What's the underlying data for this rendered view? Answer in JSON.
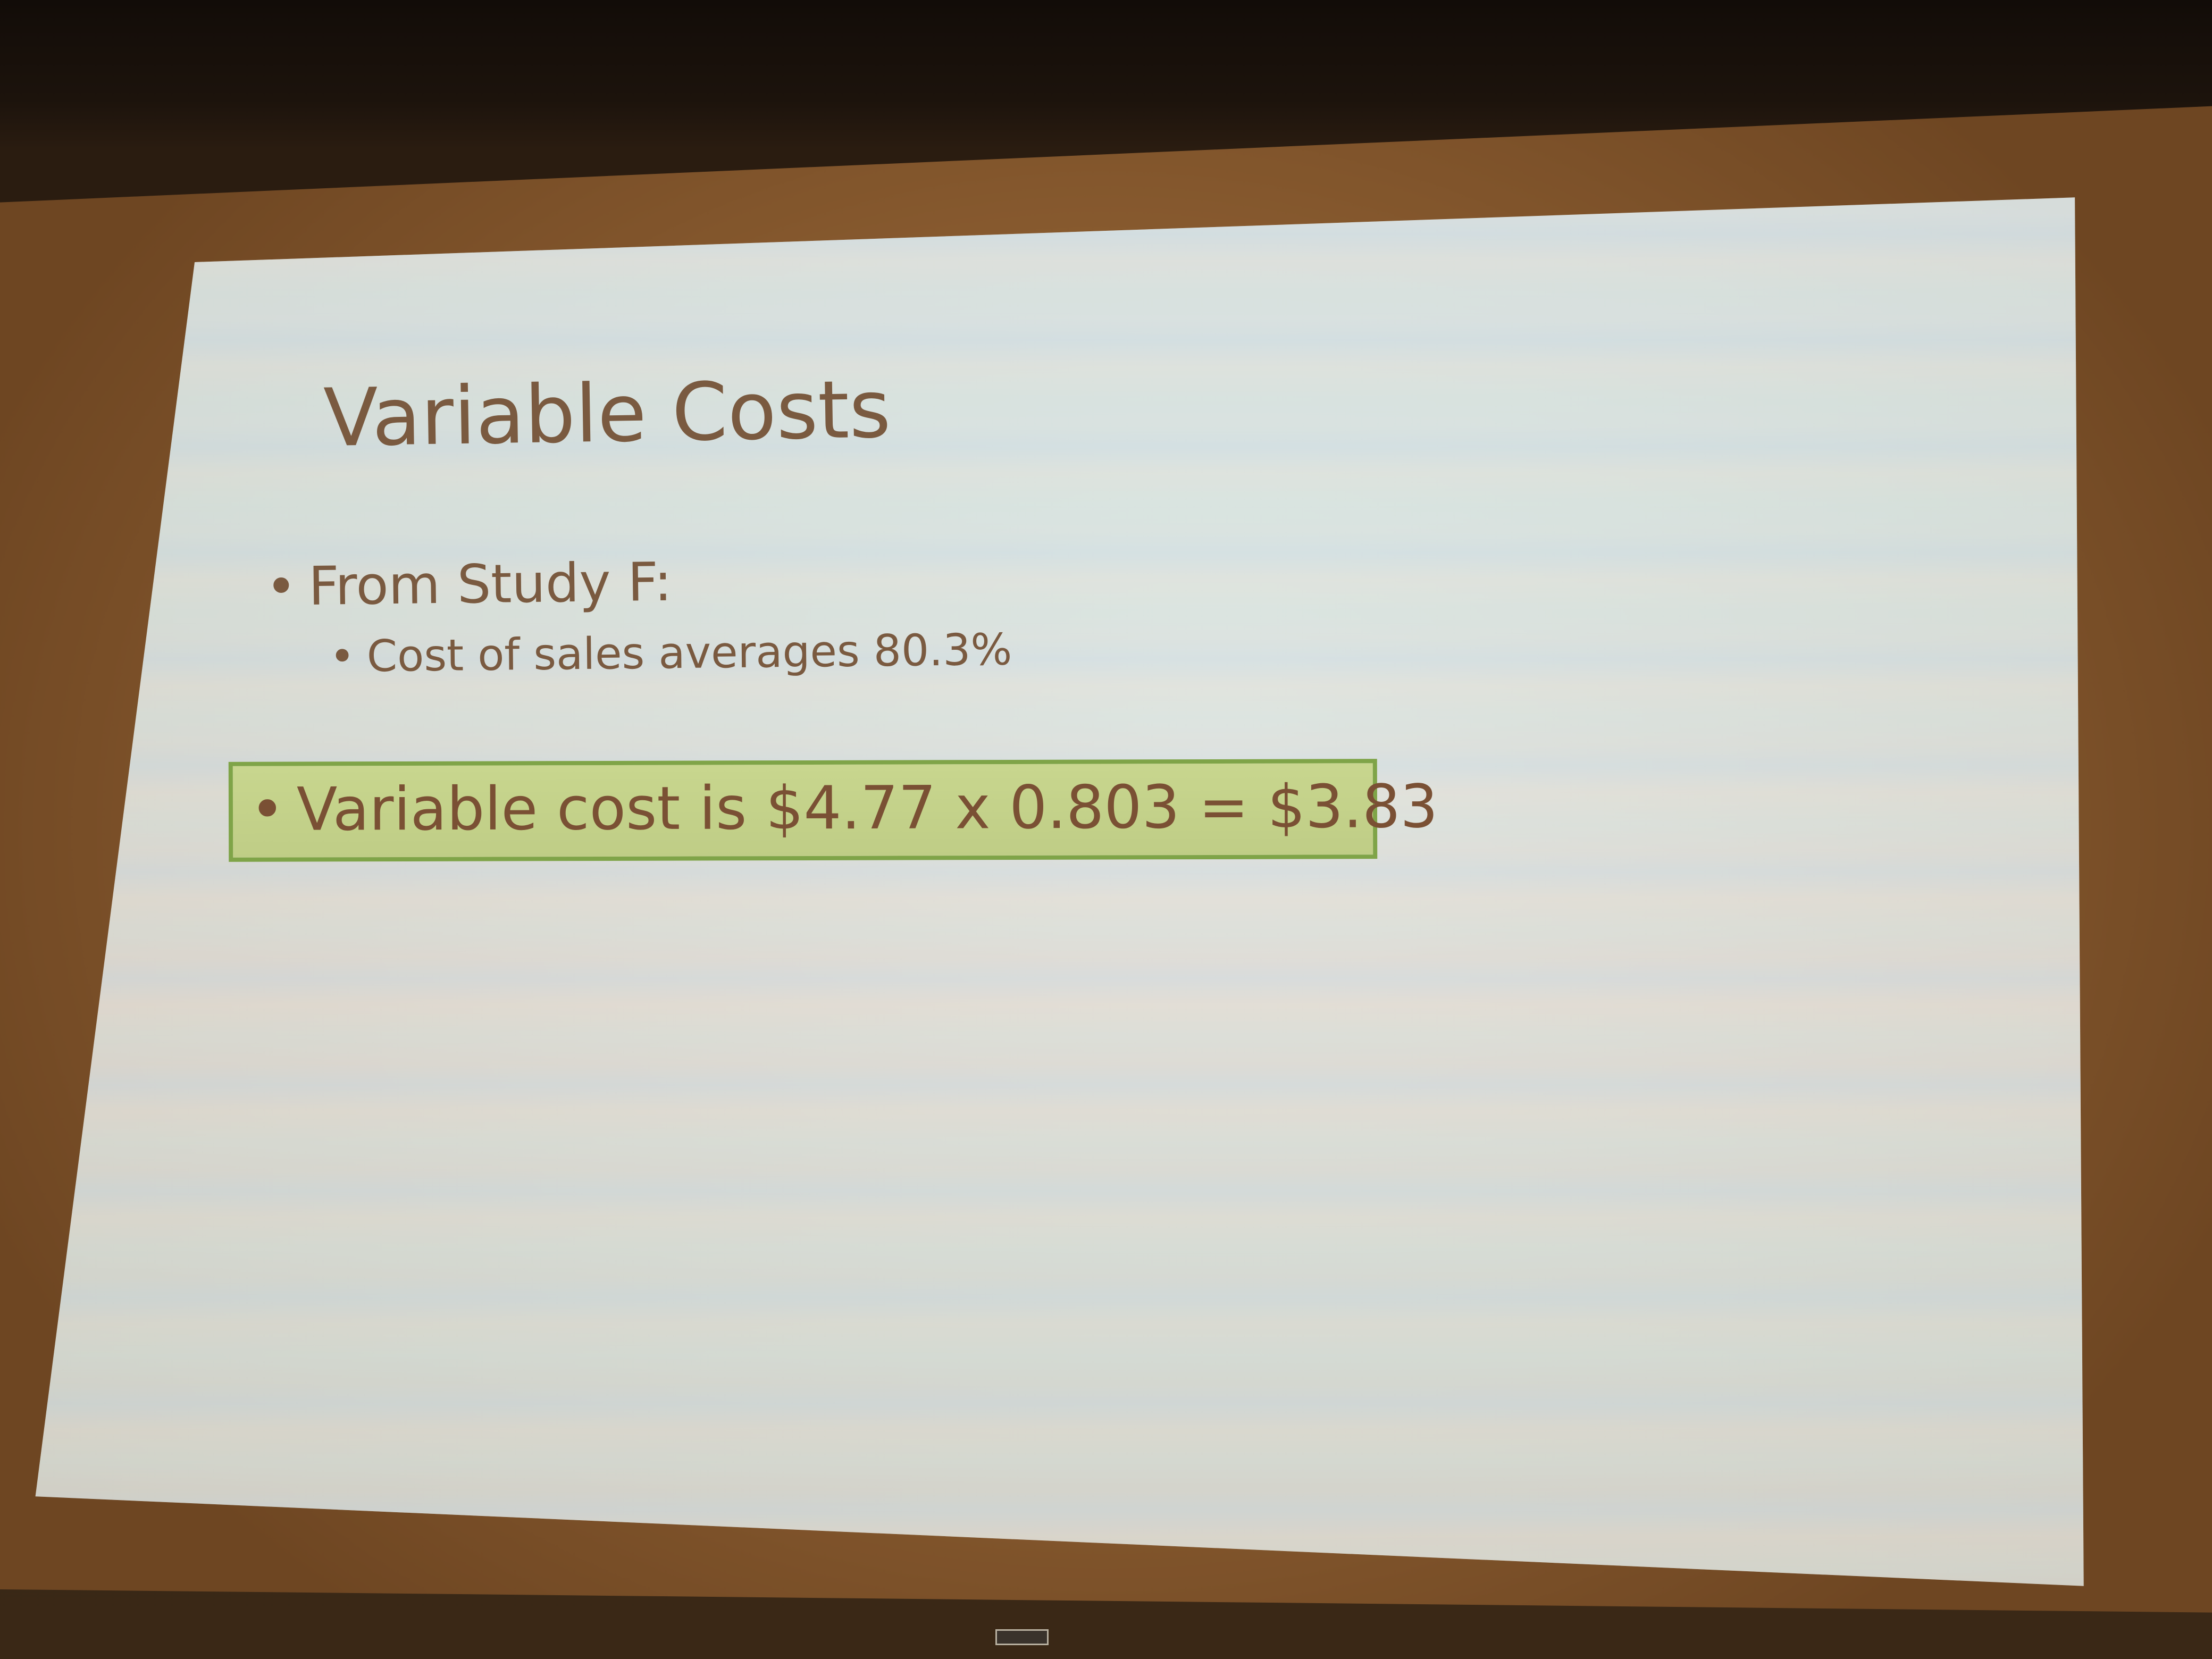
{
  "slide": {
    "title": "Variable Costs",
    "bullets": [
      {
        "level": 1,
        "text": "From Study F:"
      },
      {
        "level": 2,
        "text": "Cost of sales averages 80.3%"
      }
    ],
    "highlight": {
      "text": "Variable cost is $4.77 x 0.803 = $3.83",
      "fill_color": "#c8d68e",
      "border_color": "#7fa448"
    },
    "bullet_symbol": "•",
    "text_color": "#7a5a40"
  },
  "screen_label": ""
}
